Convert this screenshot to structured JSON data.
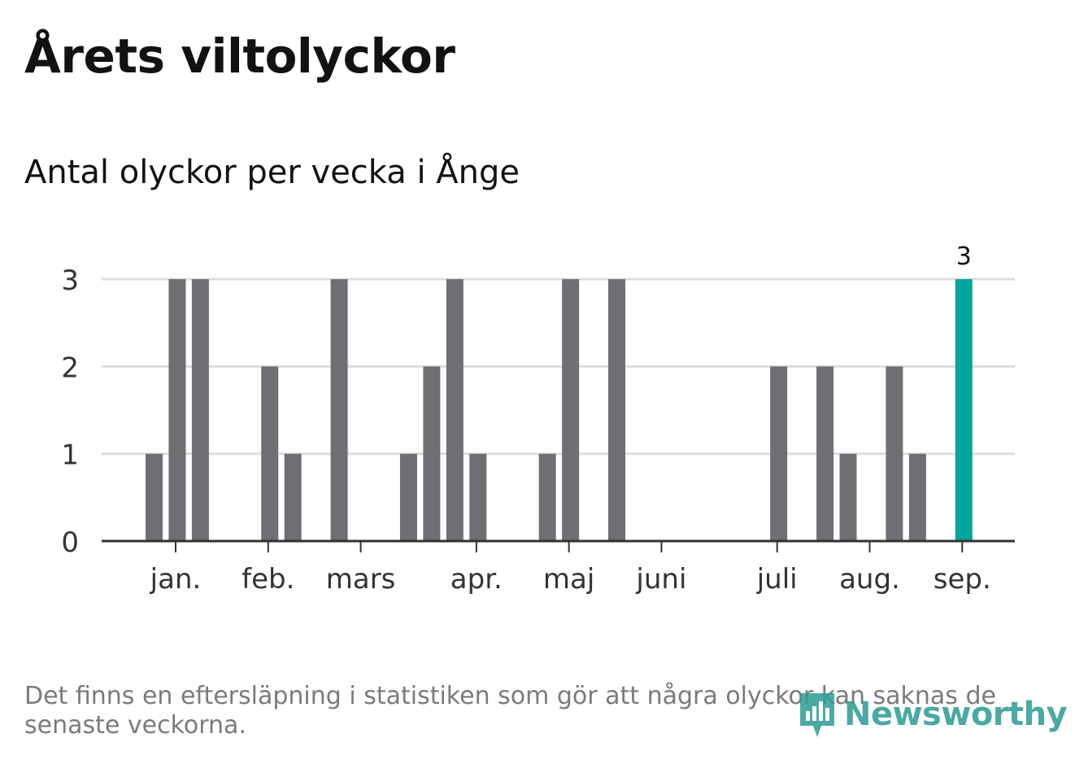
{
  "header": {
    "title": "Årets viltolyckor",
    "subtitle": "Antal olyckor per vecka i Ånge"
  },
  "footer": {
    "note": "Det finns en eftersläpning i statistiken som gör att några olyckor kan saknas de senaste veckorna.",
    "brand": "Newsworthy"
  },
  "colors": {
    "bar": "#6f6e73",
    "highlight": "#00a59b",
    "grid": "#dddddd",
    "axis": "#333333",
    "brand": "#2b9b94"
  },
  "chart_data": {
    "type": "bar",
    "ylim": [
      0,
      3
    ],
    "yticks": [
      "0",
      "1",
      "2",
      "3"
    ],
    "grid": true,
    "week_values": [
      1,
      3,
      3,
      0,
      0,
      2,
      1,
      0,
      3,
      0,
      0,
      1,
      2,
      3,
      1,
      0,
      0,
      1,
      3,
      0,
      3,
      0,
      0,
      0,
      0,
      0,
      0,
      2,
      0,
      2,
      1,
      0,
      2,
      1,
      0,
      3
    ],
    "highlight_last": true,
    "highlight_label": "3",
    "month_labels": [
      {
        "label": "jan.",
        "week": 1.3
      },
      {
        "label": "feb.",
        "week": 5.3
      },
      {
        "label": "mars",
        "week": 9.3
      },
      {
        "label": "apr.",
        "week": 14.3
      },
      {
        "label": "maj",
        "week": 18.3
      },
      {
        "label": "juni",
        "week": 22.3
      },
      {
        "label": "juli",
        "week": 27.3
      },
      {
        "label": "aug.",
        "week": 31.3
      },
      {
        "label": "sep.",
        "week": 35.3
      }
    ]
  }
}
